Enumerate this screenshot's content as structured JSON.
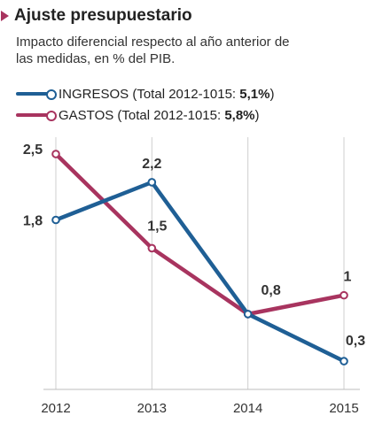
{
  "header": {
    "title": "Ajuste presupuestario",
    "subtitle": "Impacto diferencial respecto al año anterior de las medidas, en % del PIB."
  },
  "legend": [
    {
      "label": "INGRESOS (Total 2012-1015: ",
      "value": "5,1%",
      "close": ")",
      "color": "#1f5f95"
    },
    {
      "label": "GASTOS (Total 2012-1015: ",
      "value": "5,8%",
      "close": ")",
      "color": "#a8345f"
    }
  ],
  "chart_data": {
    "type": "line",
    "x": [
      2012,
      2013,
      2014,
      2015
    ],
    "ylim": [
      0,
      2.6
    ],
    "grid": "vertical",
    "series": [
      {
        "name": "INGRESOS",
        "color": "#1f5f95",
        "values": [
          1.8,
          2.2,
          0.8,
          0.3
        ],
        "labels": [
          "1,8",
          "2,2",
          "0,8",
          "0,3"
        ]
      },
      {
        "name": "GASTOS",
        "color": "#a8345f",
        "values": [
          2.5,
          1.5,
          0.8,
          1.0
        ],
        "labels": [
          "2,5",
          "1,5",
          "",
          "1"
        ]
      }
    ],
    "xticks": [
      "2012",
      "2013",
      "2014",
      "2015"
    ]
  }
}
